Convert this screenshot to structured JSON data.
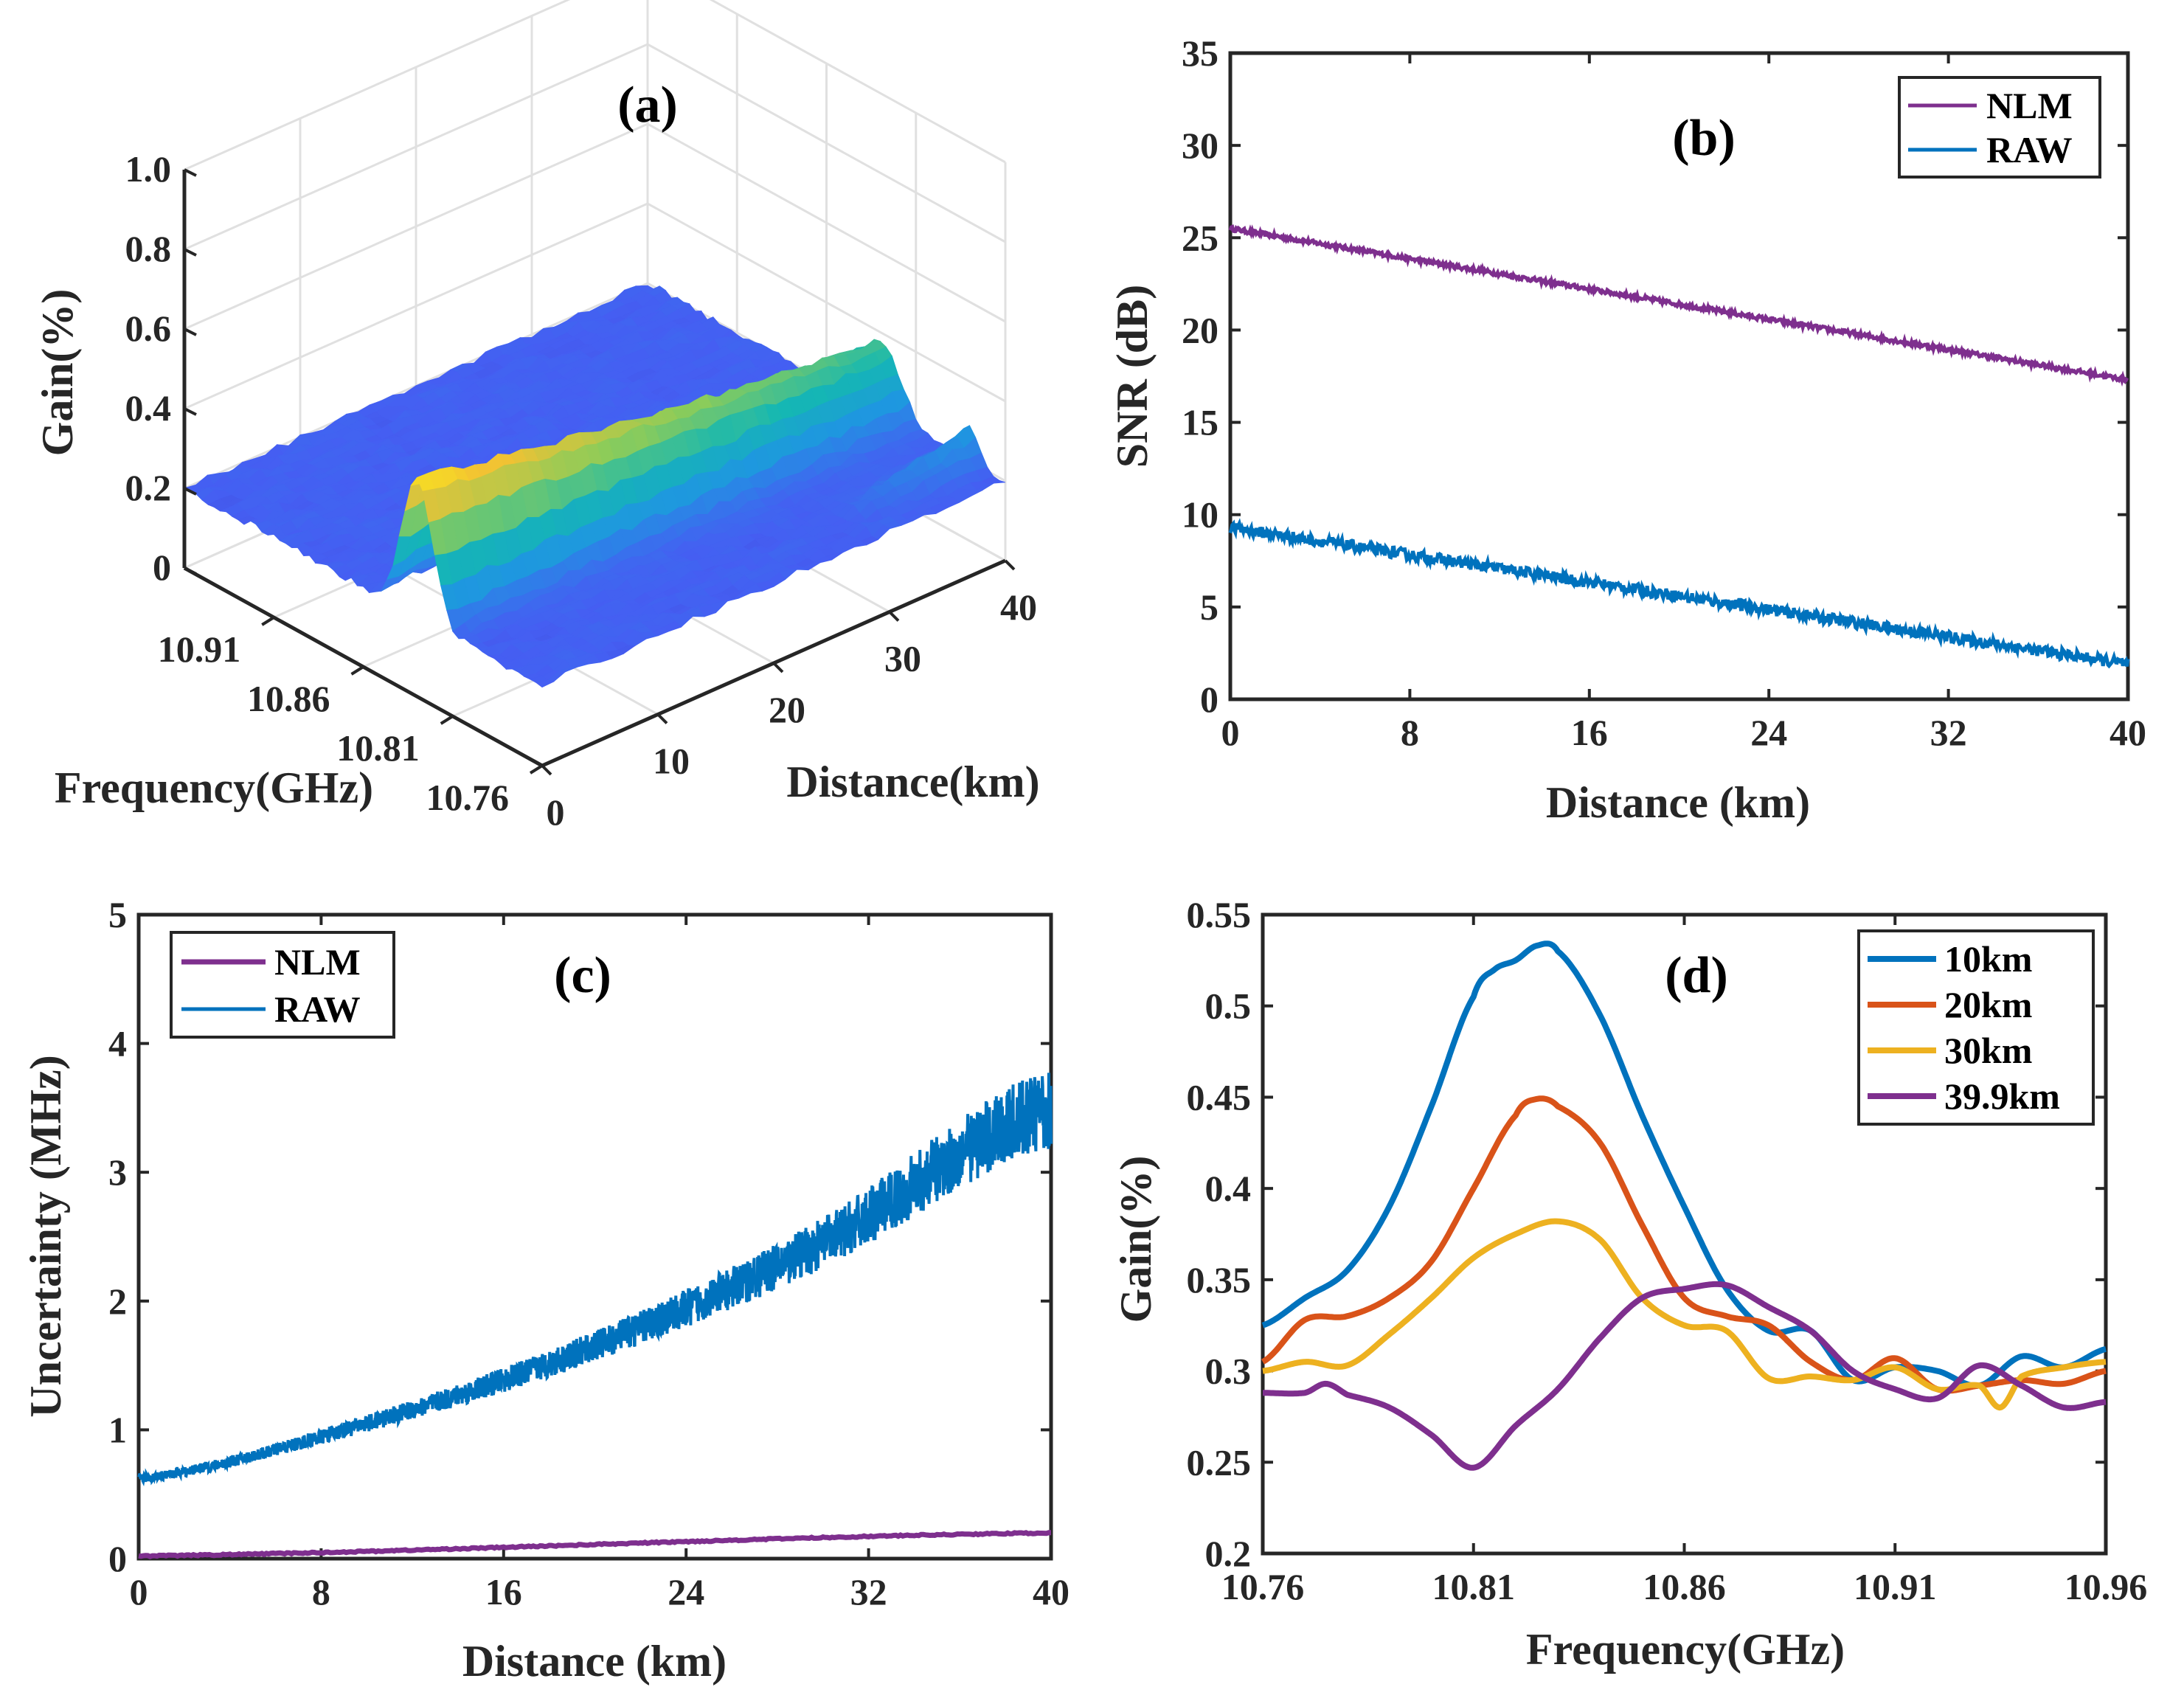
{
  "chart_data": [
    {
      "id": "a",
      "type": "surface3d",
      "panel_label": "(a)",
      "zlabel": "Gain(%)",
      "xlabel": "Frequency(GHz)",
      "ylabel": "Distance(km)",
      "zticks": [
        "0",
        "0.2",
        "0.4",
        "0.6",
        "0.8",
        "1.0"
      ],
      "freq_ticks": [
        "10.91",
        "10.86",
        "10.81",
        "10.76"
      ],
      "dist_ticks": [
        "0",
        "10",
        "20",
        "30",
        "40"
      ],
      "zlim": [
        0,
        1.0
      ],
      "freq_range": [
        10.76,
        10.96
      ],
      "dist_range": [
        0,
        40
      ],
      "peak_frequency": 10.83,
      "peak_gain_at_0km": 0.55,
      "background_gain": 0.2,
      "colormap": "parula"
    },
    {
      "id": "b",
      "type": "line",
      "panel_label": "(b)",
      "xlabel": "Distance (km)",
      "ylabel": "SNR (dB)",
      "xlim": [
        0,
        40
      ],
      "ylim": [
        0,
        35
      ],
      "xticks": [
        "0",
        "8",
        "16",
        "24",
        "32",
        "40"
      ],
      "yticks": [
        "0",
        "5",
        "10",
        "15",
        "20",
        "25",
        "30",
        "35"
      ],
      "legend_position": "top-right",
      "series": [
        {
          "name": "NLM",
          "color": "#7E2F8E",
          "x": [
            0,
            40
          ],
          "y": [
            25.5,
            17.3
          ],
          "noise": 0.12
        },
        {
          "name": "RAW",
          "color": "#0072BD",
          "x": [
            0,
            40
          ],
          "y": [
            9.3,
            1.9
          ],
          "noise": 0.3
        }
      ]
    },
    {
      "id": "c",
      "type": "line",
      "panel_label": "(c)",
      "xlabel": "Distance (km)",
      "ylabel": "Uncertainty (MHz)",
      "xlim": [
        0,
        40
      ],
      "ylim": [
        0,
        5
      ],
      "xticks": [
        "0",
        "8",
        "16",
        "24",
        "32",
        "40"
      ],
      "yticks": [
        "0",
        "1",
        "2",
        "3",
        "4",
        "5"
      ],
      "legend_position": "top-left",
      "series": [
        {
          "name": "NLM",
          "color": "#7E2F8E",
          "x": [
            0,
            40
          ],
          "y": [
            0.02,
            0.2
          ],
          "noise": 0.005
        },
        {
          "name": "RAW",
          "color": "#0072BD",
          "x": [
            0,
            10,
            20,
            30,
            40
          ],
          "y": [
            0.62,
            1.05,
            1.65,
            2.45,
            3.5
          ],
          "noise_rel": 0.09
        }
      ]
    },
    {
      "id": "d",
      "type": "line",
      "panel_label": "(d)",
      "xlabel": "Frequency(GHz)",
      "ylabel": "Gain(%)",
      "xlim": [
        10.76,
        10.96
      ],
      "ylim": [
        0.2,
        0.55
      ],
      "xticks": [
        "10.76",
        "10.81",
        "10.86",
        "10.91",
        "10.96"
      ],
      "yticks": [
        "0.2",
        "0.25",
        "0.3",
        "0.35",
        "0.4",
        "0.45",
        "0.5",
        "0.55"
      ],
      "legend_position": "top-right",
      "series": [
        {
          "name": "10km",
          "color": "#0072BD",
          "x": [
            10.76,
            10.77,
            10.78,
            10.79,
            10.8,
            10.81,
            10.815,
            10.82,
            10.825,
            10.83,
            10.84,
            10.85,
            10.86,
            10.87,
            10.88,
            10.89,
            10.9,
            10.91,
            10.92,
            10.93,
            10.94,
            10.95,
            10.96
          ],
          "y": [
            0.325,
            0.34,
            0.355,
            0.39,
            0.445,
            0.505,
            0.52,
            0.525,
            0.533,
            0.53,
            0.495,
            0.44,
            0.39,
            0.345,
            0.322,
            0.322,
            0.295,
            0.302,
            0.3,
            0.292,
            0.308,
            0.302,
            0.312
          ]
        },
        {
          "name": "20km",
          "color": "#D95319",
          "x": [
            10.76,
            10.77,
            10.78,
            10.79,
            10.8,
            10.81,
            10.82,
            10.825,
            10.83,
            10.84,
            10.85,
            10.86,
            10.87,
            10.88,
            10.89,
            10.9,
            10.91,
            10.92,
            10.93,
            10.94,
            10.95,
            10.96
          ],
          "y": [
            0.305,
            0.328,
            0.33,
            0.34,
            0.36,
            0.4,
            0.44,
            0.449,
            0.445,
            0.425,
            0.38,
            0.34,
            0.33,
            0.325,
            0.305,
            0.295,
            0.307,
            0.29,
            0.292,
            0.295,
            0.293,
            0.3
          ]
        },
        {
          "name": "30km",
          "color": "#EDB120",
          "x": [
            10.76,
            10.77,
            10.78,
            10.79,
            10.8,
            10.81,
            10.82,
            10.83,
            10.84,
            10.85,
            10.86,
            10.87,
            10.88,
            10.89,
            10.9,
            10.91,
            10.92,
            10.93,
            10.935,
            10.94,
            10.95,
            10.96
          ],
          "y": [
            0.3,
            0.305,
            0.303,
            0.32,
            0.34,
            0.362,
            0.375,
            0.382,
            0.372,
            0.34,
            0.325,
            0.322,
            0.296,
            0.297,
            0.295,
            0.302,
            0.29,
            0.292,
            0.28,
            0.297,
            0.302,
            0.305
          ]
        },
        {
          "name": "39.9km",
          "color": "#7E2F8E",
          "x": [
            10.76,
            10.77,
            10.775,
            10.78,
            10.79,
            10.8,
            10.81,
            10.82,
            10.83,
            10.84,
            10.85,
            10.86,
            10.87,
            10.88,
            10.89,
            10.9,
            10.91,
            10.92,
            10.93,
            10.94,
            10.95,
            10.96
          ],
          "y": [
            0.288,
            0.288,
            0.293,
            0.287,
            0.28,
            0.265,
            0.247,
            0.27,
            0.29,
            0.318,
            0.34,
            0.345,
            0.347,
            0.335,
            0.322,
            0.3,
            0.29,
            0.285,
            0.303,
            0.292,
            0.28,
            0.283
          ]
        }
      ]
    }
  ]
}
